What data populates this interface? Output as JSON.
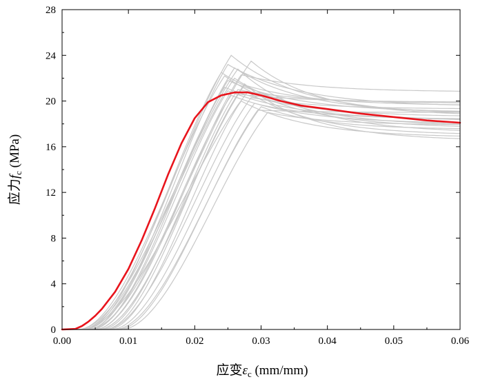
{
  "chart_data": {
    "type": "line",
    "title": "",
    "xlabel": {
      "prefix": "应变",
      "symbol": "ε",
      "subscript": "c",
      "unit": " (mm/mm)"
    },
    "ylabel": {
      "prefix": "应力",
      "symbol": "f",
      "subscript": "c",
      "unit": " (MPa)"
    },
    "xlim": [
      0,
      0.06
    ],
    "ylim": [
      0,
      28
    ],
    "x_ticks": [
      "0.00",
      "0.01",
      "0.02",
      "0.03",
      "0.04",
      "0.05",
      "0.06"
    ],
    "y_ticks": [
      "0",
      "4",
      "8",
      "12",
      "16",
      "20",
      "24",
      "28"
    ],
    "grid": false,
    "colors": {
      "samples": "#c8c8c8",
      "mean": "#e8141c",
      "axis": "#000000"
    },
    "mean_curve": {
      "name": "mean",
      "x": [
        0,
        0.002,
        0.003,
        0.004,
        0.005,
        0.006,
        0.008,
        0.01,
        0.012,
        0.014,
        0.016,
        0.018,
        0.02,
        0.022,
        0.024,
        0.026,
        0.028,
        0.03,
        0.033,
        0.036,
        0.04,
        0.045,
        0.05,
        0.055,
        0.06
      ],
      "y": [
        0,
        0.05,
        0.3,
        0.7,
        1.2,
        1.8,
        3.3,
        5.3,
        7.8,
        10.6,
        13.6,
        16.3,
        18.5,
        19.9,
        20.5,
        20.75,
        20.75,
        20.5,
        20.0,
        19.6,
        19.3,
        18.9,
        18.6,
        18.3,
        18.1
      ]
    },
    "sample_curves": [
      {
        "peak_x": 0.0255,
        "peak_y": 24.0,
        "end_y": 18.8,
        "offset": 0.001
      },
      {
        "peak_x": 0.025,
        "peak_y": 23.2,
        "end_y": 19.5,
        "offset": 0.002
      },
      {
        "peak_x": 0.0265,
        "peak_y": 22.8,
        "end_y": 17.2,
        "offset": 0.0005
      },
      {
        "peak_x": 0.024,
        "peak_y": 22.5,
        "end_y": 18.2,
        "offset": 0.0015
      },
      {
        "peak_x": 0.027,
        "peak_y": 22.3,
        "end_y": 20.8,
        "offset": 0.003
      },
      {
        "peak_x": 0.026,
        "peak_y": 22.0,
        "end_y": 17.8,
        "offset": 0.001
      },
      {
        "peak_x": 0.025,
        "peak_y": 21.8,
        "end_y": 19.0,
        "offset": 0.0025
      },
      {
        "peak_x": 0.0275,
        "peak_y": 21.5,
        "end_y": 16.5,
        "offset": 0.0035
      },
      {
        "peak_x": 0.0245,
        "peak_y": 21.2,
        "end_y": 18.6,
        "offset": 0.002
      },
      {
        "peak_x": 0.0265,
        "peak_y": 21.0,
        "end_y": 19.8,
        "offset": 0.004
      },
      {
        "peak_x": 0.028,
        "peak_y": 20.8,
        "end_y": 17.0,
        "offset": 0.001
      },
      {
        "peak_x": 0.0255,
        "peak_y": 20.5,
        "end_y": 18.0,
        "offset": 0.003
      },
      {
        "peak_x": 0.0285,
        "peak_y": 20.3,
        "end_y": 19.3,
        "offset": 0.0045
      },
      {
        "peak_x": 0.027,
        "peak_y": 20.0,
        "end_y": 16.8,
        "offset": 0.005
      },
      {
        "peak_x": 0.029,
        "peak_y": 19.8,
        "end_y": 18.4,
        "offset": 0.0055
      },
      {
        "peak_x": 0.03,
        "peak_y": 19.5,
        "end_y": 17.5,
        "offset": 0.006
      },
      {
        "peak_x": 0.0295,
        "peak_y": 19.2,
        "end_y": 19.0,
        "offset": 0.0065
      },
      {
        "peak_x": 0.031,
        "peak_y": 19.0,
        "end_y": 17.9,
        "offset": 0.007
      },
      {
        "peak_x": 0.026,
        "peak_y": 22.9,
        "end_y": 18.9,
        "offset": 0.0015
      },
      {
        "peak_x": 0.0245,
        "peak_y": 22.2,
        "end_y": 17.6,
        "offset": 0.0005
      },
      {
        "peak_x": 0.0275,
        "peak_y": 21.4,
        "end_y": 19.6,
        "offset": 0.0035
      },
      {
        "peak_x": 0.025,
        "peak_y": 20.9,
        "end_y": 18.3,
        "offset": 0.0025
      },
      {
        "peak_x": 0.0285,
        "peak_y": 23.5,
        "end_y": 18.7,
        "offset": 0.002
      },
      {
        "peak_x": 0.0265,
        "peak_y": 20.6,
        "end_y": 19.9,
        "offset": 0.0045
      }
    ]
  }
}
